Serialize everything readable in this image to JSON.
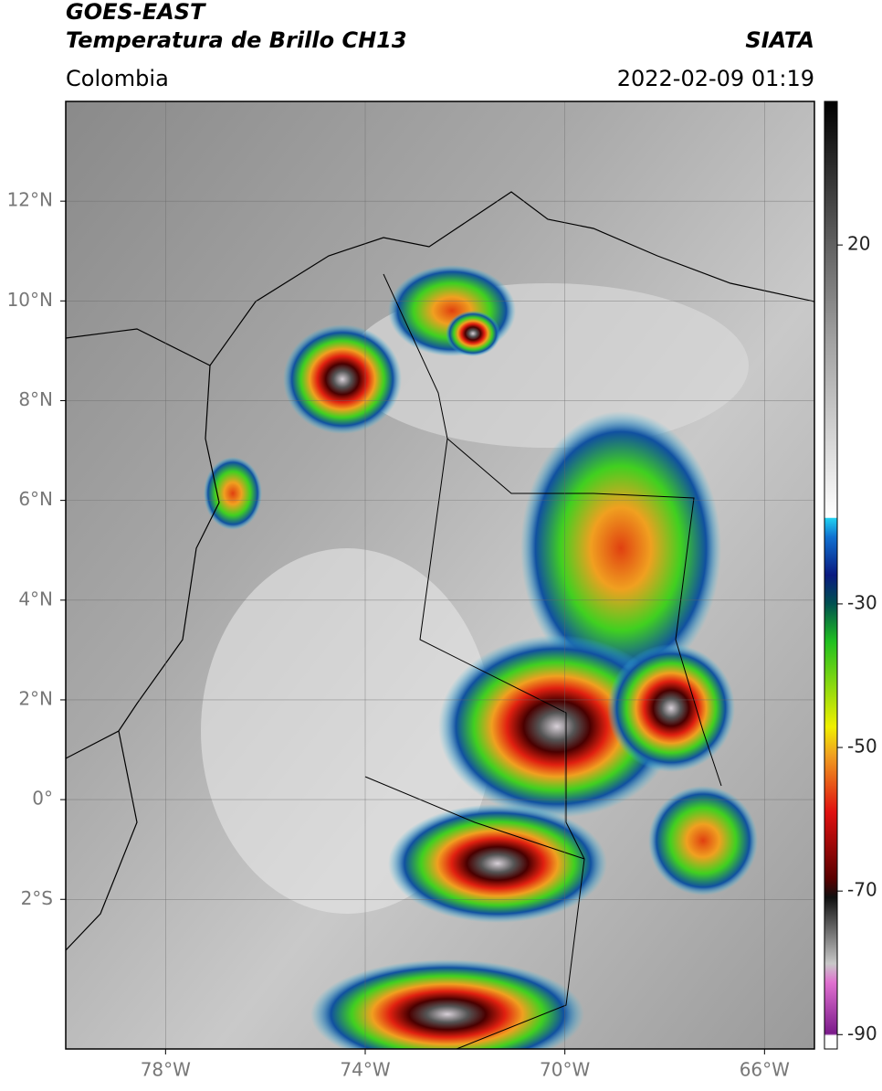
{
  "header": {
    "title": "GOES-EAST",
    "subtitle": "Temperatura de Brillo CH13",
    "source": "SIATA",
    "region": "Colombia",
    "datetime": "2022-02-09 01:19"
  },
  "map": {
    "xlim": [
      -80,
      -65
    ],
    "ylim": [
      -5,
      14
    ],
    "lon_ticks": [
      {
        "value": -78,
        "label": "78°W"
      },
      {
        "value": -74,
        "label": "74°W"
      },
      {
        "value": -70,
        "label": "70°W"
      },
      {
        "value": -66,
        "label": "66°W"
      }
    ],
    "lat_ticks": [
      {
        "value": 12,
        "label": "12°N"
      },
      {
        "value": 10,
        "label": "10°N"
      },
      {
        "value": 8,
        "label": "8°N"
      },
      {
        "value": 6,
        "label": "6°N"
      },
      {
        "value": 4,
        "label": "4°N"
      },
      {
        "value": 2,
        "label": "2°N"
      },
      {
        "value": 0,
        "label": "0°"
      },
      {
        "value": -2,
        "label": "2°S"
      }
    ]
  },
  "colorbar": {
    "lim": [
      -92,
      40
    ],
    "ticks": [
      20,
      -30,
      -50,
      -70,
      -90
    ]
  }
}
